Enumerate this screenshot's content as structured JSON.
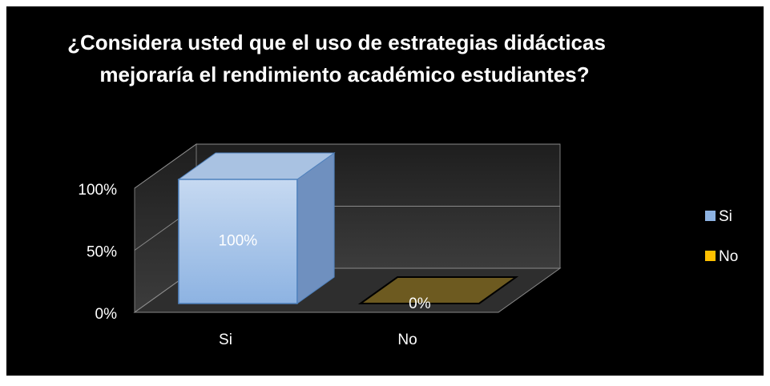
{
  "chart_data": {
    "type": "bar3d",
    "title": [
      "¿Considera usted que el uso de estrategias didácticas",
      "mejoraría el rendimiento académico estudiantes?"
    ],
    "categories": [
      "Si",
      "No"
    ],
    "values": [
      100,
      0
    ],
    "value_labels": [
      "100%",
      "0%"
    ],
    "colors": [
      "#8db3e2",
      "#ffc000"
    ],
    "ylim": [
      0,
      100
    ],
    "yticks": [
      {
        "value": 0,
        "label": "0%"
      },
      {
        "value": 50,
        "label": "50%"
      },
      {
        "value": 100,
        "label": "100%"
      }
    ],
    "grid": true,
    "legend": "right"
  }
}
